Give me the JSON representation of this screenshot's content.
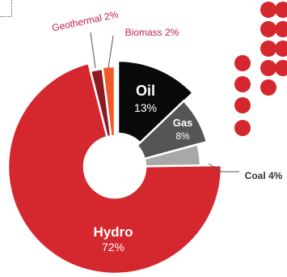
{
  "chart_data": {
    "type": "pie",
    "title": "",
    "legend": "none",
    "slices": [
      {
        "name": "Oil",
        "display": "Oil",
        "pct_label": "13%",
        "value": 13,
        "color": "#0a0a0a",
        "label_color": "#ffffff"
      },
      {
        "name": "Gas",
        "display": "Gas",
        "pct_label": "8%",
        "value": 8,
        "color": "#555555",
        "label_color": "#ffffff"
      },
      {
        "name": "Coal",
        "display": "Coal 4%",
        "pct_label": "",
        "value": 4,
        "color": "#a8a8a8",
        "label_color": "#333333"
      },
      {
        "name": "Hydro",
        "display": "Hydro",
        "pct_label": "72%",
        "value": 72,
        "color": "#d4282e",
        "label_color": "#ffffff"
      },
      {
        "name": "Geothermal",
        "display": "Geothermal 2%",
        "pct_label": "",
        "value": 2,
        "color": "#8e1a22",
        "label_color": "#c0224a"
      },
      {
        "name": "Biomass",
        "display": "Biomass 2%",
        "pct_label": "",
        "value": 2,
        "color": "#f05a28",
        "label_color": "#c0224a"
      }
    ]
  },
  "colors": {
    "accent_red": "#d4282e",
    "label_pink": "#c0224a",
    "callout_line": "#555555"
  }
}
